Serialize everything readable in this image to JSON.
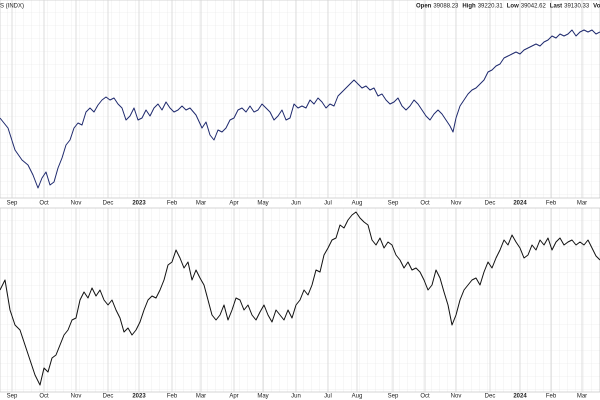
{
  "symbol": "S (INDX)",
  "header": [
    {
      "label": "Open",
      "value": "39088.23"
    },
    {
      "label": "High",
      "value": "39220.31"
    },
    {
      "label": "Low",
      "value": "39042.62"
    },
    {
      "label": "Last",
      "value": "39130.33"
    },
    {
      "label": "Volume",
      "value": ""
    }
  ],
  "chart_data": [
    {
      "type": "line",
      "color": "#1f2a6e",
      "xlim": [
        0,
        600
      ],
      "ylim": [
        0,
        200
      ],
      "xticks": [
        {
          "value": 12,
          "label": "Sep"
        },
        {
          "value": 44,
          "label": "Oct"
        },
        {
          "value": 76,
          "label": "Nov"
        },
        {
          "value": 108,
          "label": "Dec"
        },
        {
          "value": 139,
          "label": "2023"
        },
        {
          "value": 172,
          "label": "Feb"
        },
        {
          "value": 201,
          "label": "Mar"
        },
        {
          "value": 234,
          "label": "Apr"
        },
        {
          "value": 263,
          "label": "May"
        },
        {
          "value": 296,
          "label": "Jun"
        },
        {
          "value": 328,
          "label": "Jul"
        },
        {
          "value": 357,
          "label": "Aug"
        },
        {
          "value": 393,
          "label": "Sep"
        },
        {
          "value": 425,
          "label": "Oct"
        },
        {
          "value": 456,
          "label": "Nov"
        },
        {
          "value": 490,
          "label": "Dec"
        },
        {
          "value": 520,
          "label": "2024"
        },
        {
          "value": 551,
          "label": "Feb"
        },
        {
          "value": 582,
          "label": "Mar"
        }
      ],
      "x": [
        0,
        8,
        15,
        22,
        28,
        33,
        38,
        42,
        46,
        50,
        54,
        58,
        62,
        66,
        70,
        74,
        78,
        82,
        86,
        90,
        94,
        98,
        102,
        106,
        110,
        114,
        118,
        122,
        126,
        130,
        134,
        138,
        142,
        146,
        150,
        154,
        158,
        162,
        166,
        170,
        174,
        178,
        182,
        186,
        190,
        196,
        202,
        206,
        210,
        214,
        218,
        222,
        226,
        230,
        234,
        238,
        242,
        246,
        250,
        254,
        258,
        262,
        266,
        270,
        274,
        278,
        282,
        286,
        290,
        294,
        298,
        302,
        306,
        310,
        314,
        318,
        322,
        326,
        330,
        334,
        338,
        342,
        346,
        350,
        354,
        358,
        362,
        366,
        370,
        374,
        378,
        382,
        386,
        390,
        394,
        398,
        402,
        406,
        410,
        414,
        418,
        422,
        426,
        430,
        434,
        438,
        442,
        446,
        450,
        453,
        456,
        460,
        464,
        468,
        472,
        476,
        480,
        484,
        488,
        492,
        496,
        500,
        504,
        508,
        512,
        516,
        520,
        524,
        528,
        532,
        536,
        540,
        544,
        548,
        552,
        556,
        560,
        564,
        568,
        572,
        576,
        580,
        584,
        588,
        592,
        596,
        600
      ],
      "values": [
        82,
        72,
        50,
        40,
        35,
        25,
        12,
        22,
        28,
        15,
        18,
        32,
        42,
        55,
        60,
        72,
        77,
        75,
        88,
        92,
        88,
        95,
        100,
        103,
        100,
        102,
        96,
        92,
        80,
        84,
        92,
        80,
        82,
        90,
        84,
        92,
        96,
        90,
        98,
        92,
        88,
        90,
        94,
        90,
        92,
        85,
        72,
        78,
        65,
        60,
        70,
        68,
        72,
        80,
        82,
        90,
        92,
        88,
        94,
        88,
        90,
        96,
        92,
        88,
        80,
        84,
        90,
        80,
        82,
        96,
        92,
        94,
        92,
        100,
        96,
        102,
        98,
        92,
        96,
        94,
        104,
        108,
        112,
        116,
        120,
        116,
        112,
        114,
        110,
        112,
        104,
        106,
        100,
        96,
        98,
        102,
        94,
        90,
        94,
        100,
        96,
        90,
        84,
        80,
        86,
        90,
        86,
        80,
        74,
        68,
        82,
        94,
        100,
        106,
        110,
        112,
        116,
        120,
        128,
        130,
        134,
        136,
        142,
        144,
        146,
        148,
        146,
        150,
        152,
        154,
        156,
        154,
        158,
        160,
        164,
        162,
        166,
        164,
        166,
        170,
        164,
        168,
        170,
        168,
        170,
        166,
        168
      ]
    },
    {
      "type": "line",
      "color": "#111111",
      "xlim": [
        0,
        600
      ],
      "ylim": [
        0,
        200
      ],
      "xticks": [
        {
          "value": 12,
          "label": "Sep"
        },
        {
          "value": 44,
          "label": "Oct"
        },
        {
          "value": 76,
          "label": "Nov"
        },
        {
          "value": 108,
          "label": "Dec"
        },
        {
          "value": 139,
          "label": "2023"
        },
        {
          "value": 172,
          "label": "Feb"
        },
        {
          "value": 201,
          "label": "Mar"
        },
        {
          "value": 234,
          "label": "Apr"
        },
        {
          "value": 263,
          "label": "May"
        },
        {
          "value": 296,
          "label": "Jun"
        },
        {
          "value": 328,
          "label": "Jul"
        },
        {
          "value": 357,
          "label": "Aug"
        },
        {
          "value": 393,
          "label": "Sep"
        },
        {
          "value": 425,
          "label": "Oct"
        },
        {
          "value": 456,
          "label": "Nov"
        },
        {
          "value": 490,
          "label": "Dec"
        },
        {
          "value": 520,
          "label": "2024"
        },
        {
          "value": 551,
          "label": "Feb"
        },
        {
          "value": 582,
          "label": "Mar"
        }
      ],
      "x": [
        0,
        5,
        10,
        15,
        20,
        25,
        30,
        35,
        40,
        44,
        48,
        52,
        56,
        60,
        64,
        68,
        72,
        76,
        80,
        84,
        88,
        92,
        96,
        100,
        104,
        108,
        112,
        116,
        120,
        124,
        128,
        132,
        136,
        140,
        144,
        148,
        152,
        156,
        160,
        164,
        168,
        172,
        176,
        180,
        184,
        188,
        192,
        196,
        200,
        204,
        208,
        212,
        216,
        220,
        224,
        228,
        232,
        236,
        240,
        244,
        248,
        252,
        256,
        260,
        264,
        268,
        272,
        276,
        280,
        284,
        288,
        292,
        296,
        300,
        304,
        308,
        312,
        316,
        320,
        324,
        328,
        332,
        336,
        340,
        344,
        348,
        352,
        356,
        360,
        364,
        368,
        372,
        376,
        380,
        384,
        388,
        392,
        396,
        400,
        404,
        408,
        412,
        416,
        420,
        424,
        428,
        432,
        436,
        440,
        444,
        448,
        452,
        456,
        460,
        464,
        468,
        472,
        476,
        480,
        484,
        488,
        492,
        496,
        500,
        504,
        508,
        512,
        516,
        520,
        524,
        528,
        532,
        536,
        540,
        544,
        548,
        552,
        556,
        560,
        564,
        568,
        572,
        576,
        580,
        584,
        588,
        592,
        596,
        600
      ],
      "values": [
        110,
        120,
        90,
        75,
        70,
        55,
        40,
        25,
        15,
        32,
        28,
        42,
        45,
        55,
        65,
        70,
        80,
        82,
        100,
        108,
        102,
        112,
        104,
        110,
        100,
        95,
        100,
        90,
        82,
        68,
        72,
        65,
        70,
        78,
        90,
        100,
        104,
        102,
        110,
        120,
        135,
        138,
        150,
        142,
        132,
        138,
        120,
        130,
        122,
        115,
        100,
        85,
        80,
        85,
        95,
        80,
        90,
        102,
        100,
        90,
        95,
        85,
        80,
        88,
        95,
        85,
        78,
        90,
        85,
        80,
        90,
        82,
        95,
        100,
        110,
        105,
        115,
        130,
        128,
        145,
        152,
        160,
        162,
        175,
        172,
        180,
        185,
        188,
        182,
        178,
        175,
        160,
        155,
        162,
        152,
        158,
        155,
        145,
        140,
        132,
        138,
        130,
        132,
        128,
        120,
        110,
        115,
        130,
        122,
        108,
        95,
        75,
        85,
        100,
        110,
        115,
        120,
        122,
        115,
        128,
        138,
        132,
        142,
        150,
        160,
        155,
        165,
        158,
        152,
        142,
        145,
        155,
        150,
        160,
        155,
        162,
        150,
        158,
        162,
        155,
        158,
        160,
        155,
        158,
        155,
        160,
        152,
        144,
        140
      ]
    }
  ]
}
